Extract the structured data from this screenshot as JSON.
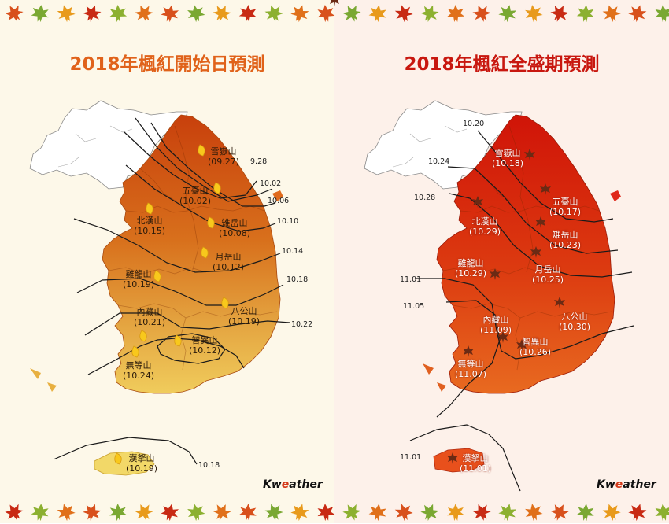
{
  "colors": {
    "left_title": "#e0621a",
    "right_title": "#c8170f",
    "left_map_top": "#d04a10",
    "left_map_bottom": "#f2d060",
    "right_map_top": "#d81a10",
    "right_map_bottom": "#e8621c",
    "onset_marker": "#f7c81e",
    "peak_marker": "#6b2a14"
  },
  "icons": {
    "border": "maple-leaf-icon",
    "left_marker": "yellow-leaf-icon",
    "right_marker": "brown-maple-leaf-icon"
  },
  "left": {
    "title": "2018年楓紅開始日預測",
    "logo": "Kweather",
    "peaks": [
      {
        "name": "雪嶽山",
        "date": "(09.27)"
      },
      {
        "name": "五臺山",
        "date": "(10.02)"
      },
      {
        "name": "雉岳山",
        "date": "(10.08)"
      },
      {
        "name": "北漢山",
        "date": "(10.15)"
      },
      {
        "name": "月岳山",
        "date": "(10.12)"
      },
      {
        "name": "雞龍山",
        "date": "(10.19)"
      },
      {
        "name": "八公山",
        "date": "(10.19)"
      },
      {
        "name": "內藏山",
        "date": "(10.21)"
      },
      {
        "name": "智異山",
        "date": "(10.12)"
      },
      {
        "name": "無等山",
        "date": "(10.24)"
      },
      {
        "name": "漢拏山",
        "date": "(10.19)"
      }
    ],
    "isolines": [
      "9.28",
      "10.02",
      "10.06",
      "10.10",
      "10.14",
      "10.18",
      "10.22",
      "10.18"
    ]
  },
  "right": {
    "title": "2018年楓紅全盛期預測",
    "logo": "Kweather",
    "peaks": [
      {
        "name": "雪嶽山",
        "date": "(10.18)"
      },
      {
        "name": "五臺山",
        "date": "(10.17)"
      },
      {
        "name": "北漢山",
        "date": "(10.29)"
      },
      {
        "name": "雉岳山",
        "date": "(10.23)"
      },
      {
        "name": "雞龍山",
        "date": "(10.29)"
      },
      {
        "name": "月岳山",
        "date": "(10.25)"
      },
      {
        "name": "八公山",
        "date": "(10.30)"
      },
      {
        "name": "內藏山",
        "date": "(11.09)"
      },
      {
        "name": "智異山",
        "date": "(10.26)"
      },
      {
        "name": "無等山",
        "date": "(11.07)"
      },
      {
        "name": "漢拏山",
        "date": "(11.01)"
      }
    ],
    "isolines": [
      "10.20",
      "10.24",
      "10.28",
      "11.01",
      "11.05",
      "11.01"
    ]
  }
}
